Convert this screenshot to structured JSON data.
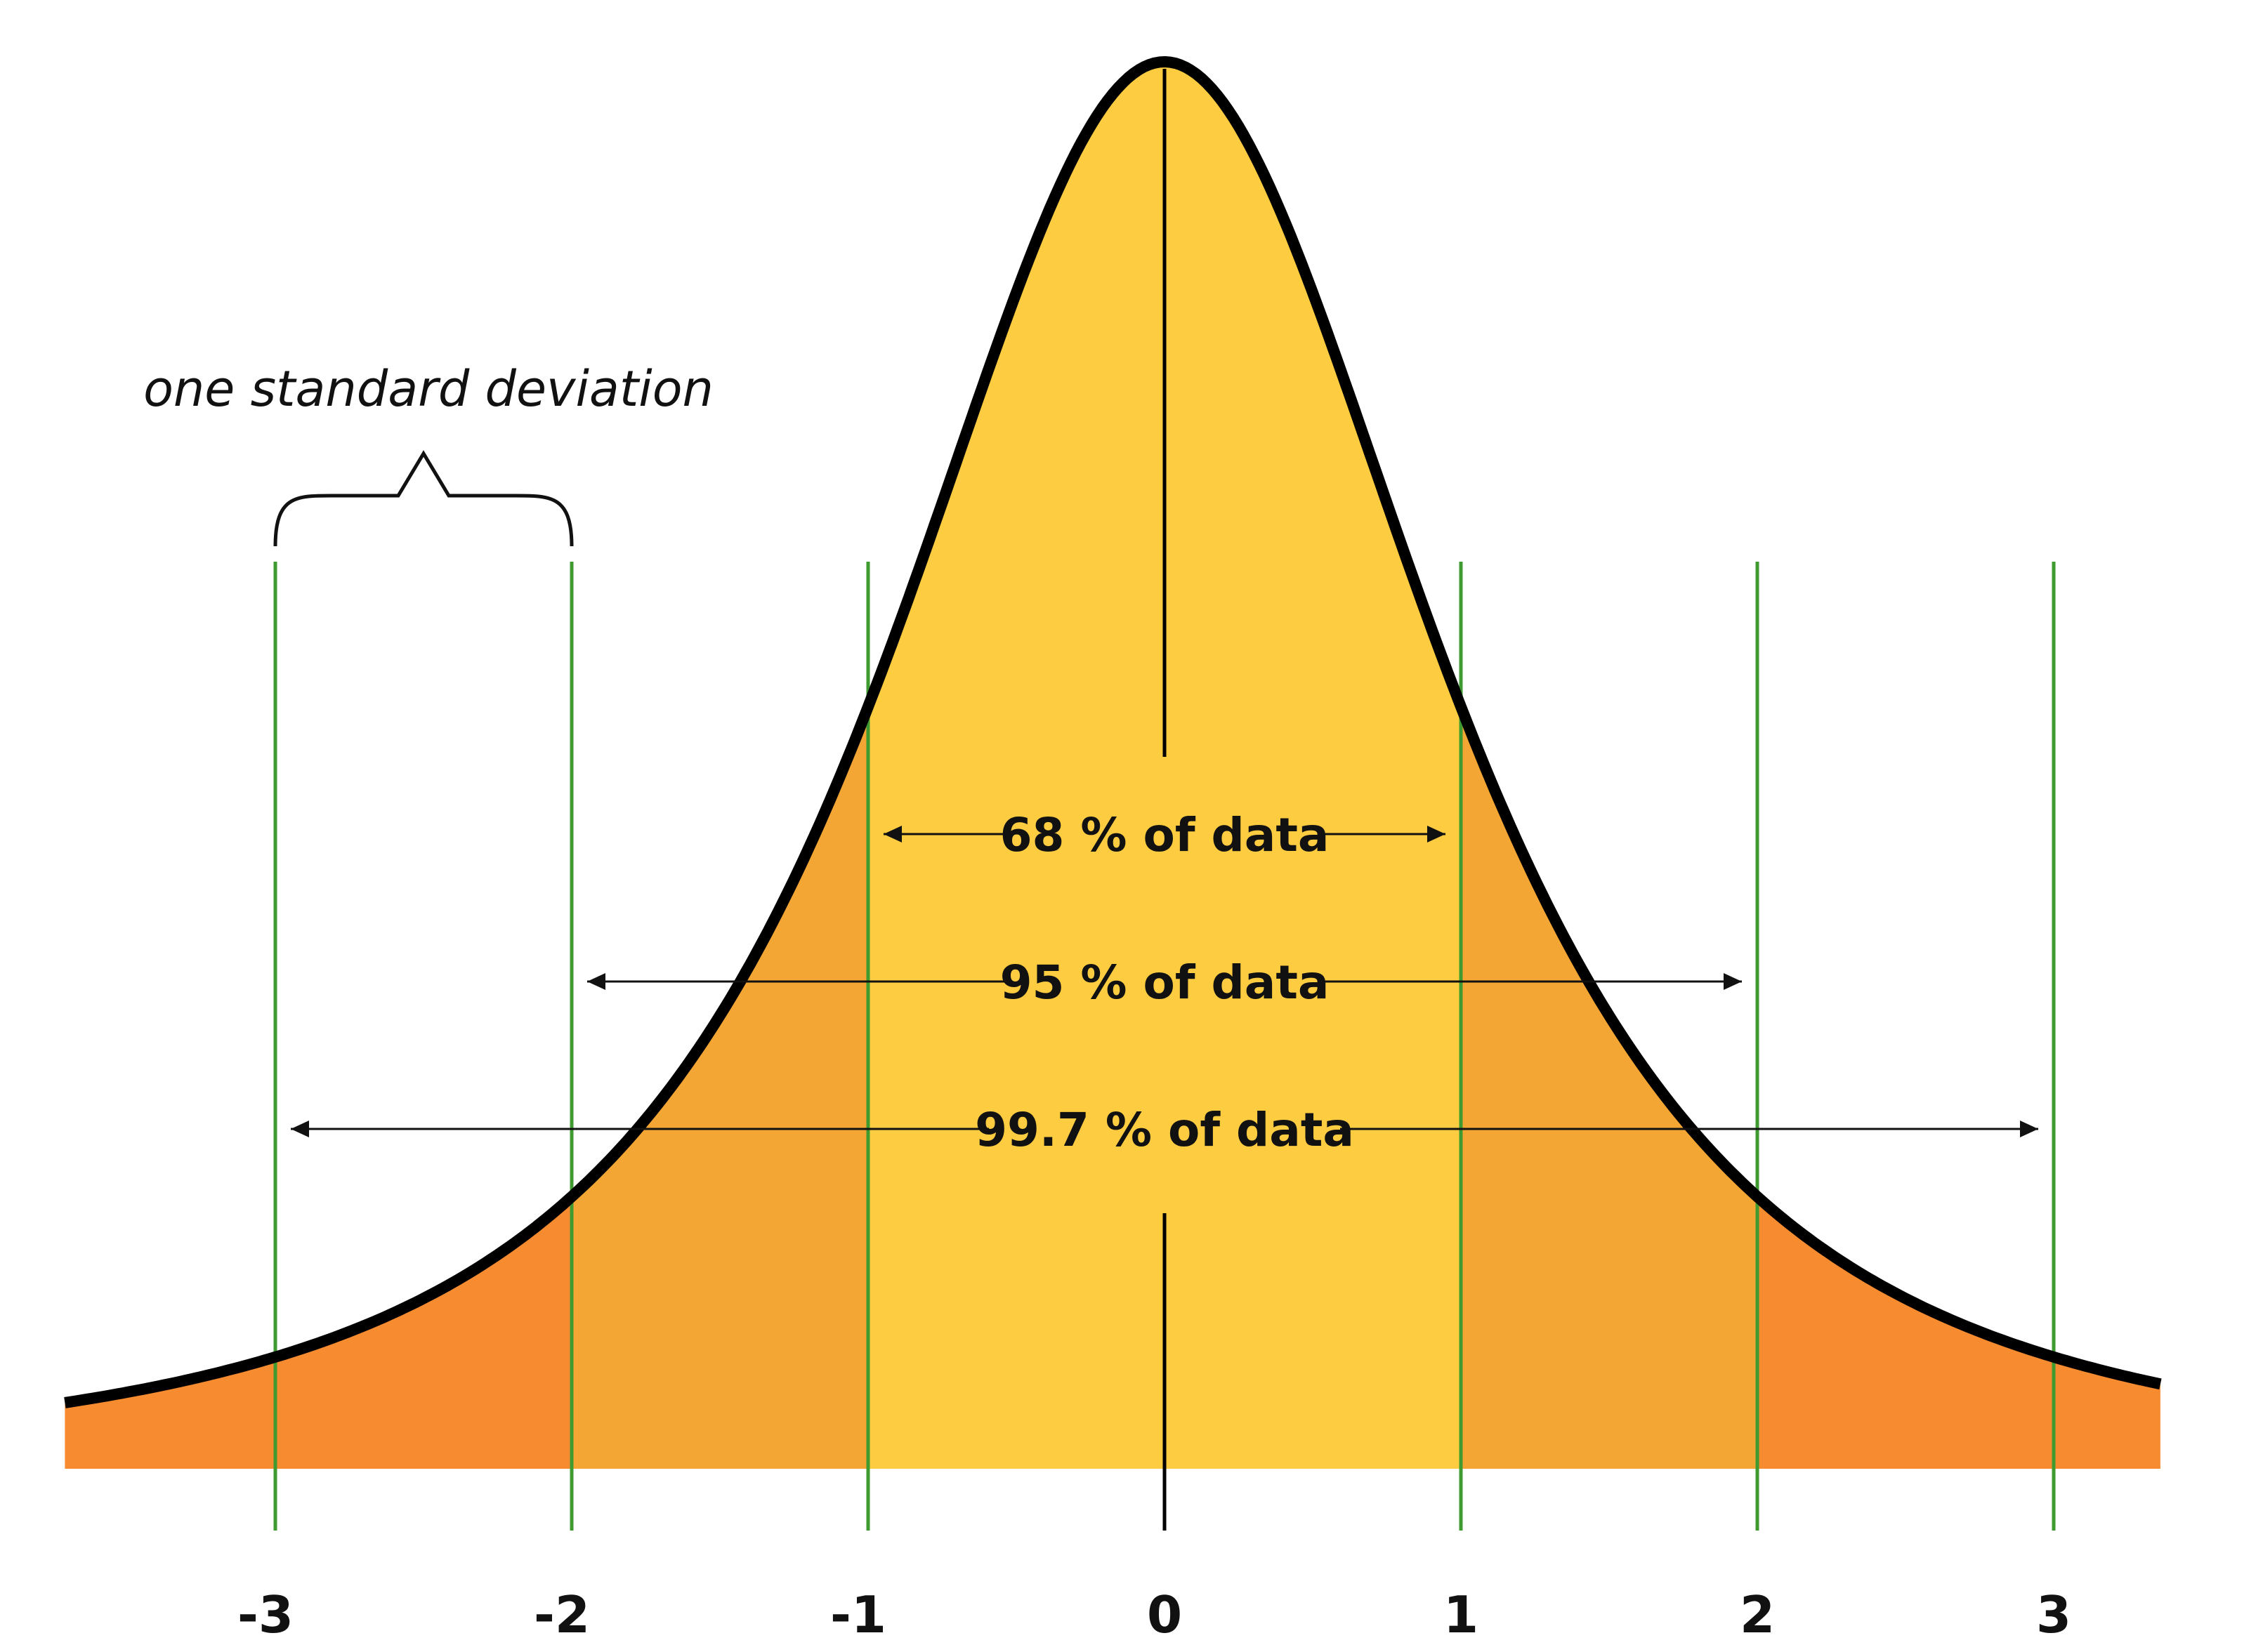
{
  "annotation": {
    "text": "one standard deviation"
  },
  "colors": {
    "curve": "#000000",
    "band_1sd": "#fdcc40",
    "band_2sd": "#f4a634",
    "band_3sd": "#f68b2f",
    "guide_line": "#3f9b2f",
    "arrow": "#111111",
    "background": "#ffffff"
  },
  "axis": {
    "ticks": [
      {
        "value": -3,
        "label": "-3"
      },
      {
        "value": -2,
        "label": "-2"
      },
      {
        "value": -1,
        "label": "-1"
      },
      {
        "value": 0,
        "label": "0"
      },
      {
        "value": 1,
        "label": "1"
      },
      {
        "value": 2,
        "label": "2"
      },
      {
        "value": 3,
        "label": "3"
      }
    ]
  },
  "intervals": [
    {
      "label": "68 % of data",
      "from": -1,
      "to": 1
    },
    {
      "label": "95 % of data",
      "from": -2,
      "to": 2
    },
    {
      "label": "99.7 % of data",
      "from": -3,
      "to": 3
    }
  ]
}
